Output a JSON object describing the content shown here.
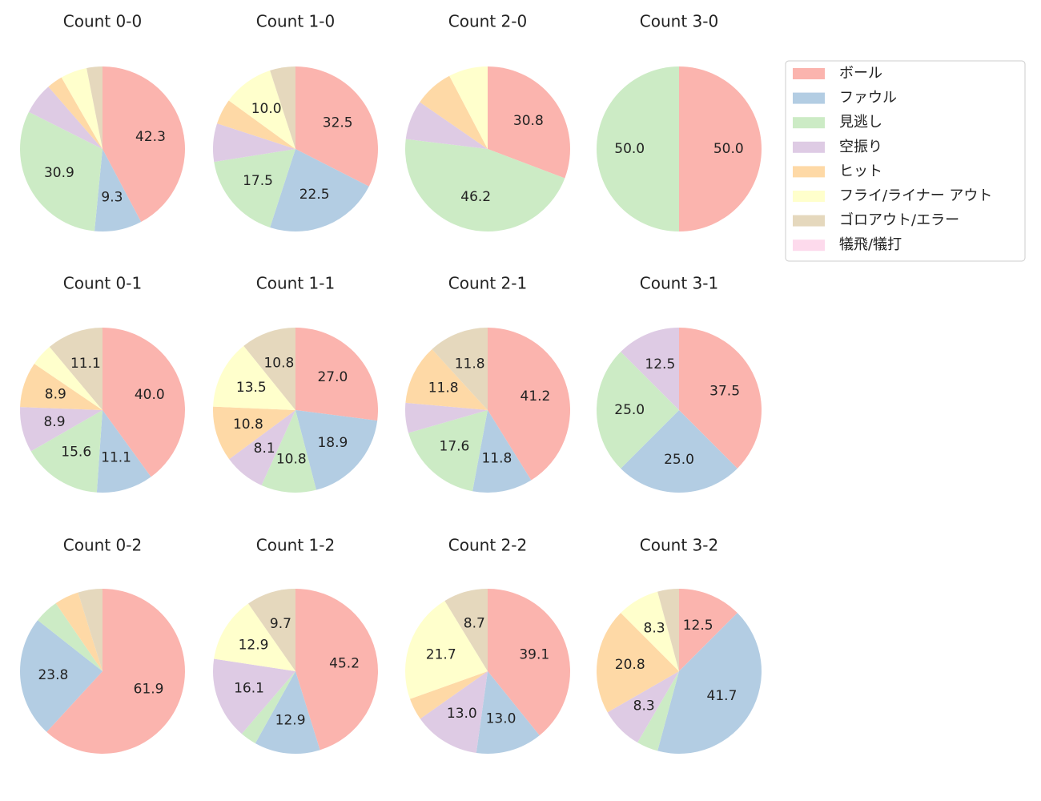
{
  "legend": {
    "entries": [
      "ボール",
      "ファウル",
      "見逃し",
      "空振り",
      "ヒット",
      "フライ/ライナー アウト",
      "ゴロアウト/エラー",
      "犠飛/犠打"
    ],
    "colors": [
      "#fbb4ae",
      "#b3cde3",
      "#ccebc5",
      "#decbe4",
      "#fed9a6",
      "#ffffcc",
      "#e5d8bd",
      "#fddaec"
    ],
    "position": "upper right"
  },
  "chart_data": [
    {
      "type": "pie",
      "title": "Count 0-0",
      "values": [
        42.3,
        9.3,
        30.9,
        6.2,
        3.1,
        5.2,
        3.1,
        0
      ],
      "value_labels": [
        "42.3",
        "9.3",
        "30.9",
        null,
        null,
        null,
        null,
        null
      ]
    },
    {
      "type": "pie",
      "title": "Count 1-0",
      "values": [
        32.5,
        22.5,
        17.5,
        7.5,
        5.0,
        10.0,
        5.0,
        0
      ],
      "value_labels": [
        "32.5",
        "22.5",
        "17.5",
        null,
        null,
        "10.0",
        null,
        null
      ]
    },
    {
      "type": "pie",
      "title": "Count 2-0",
      "values": [
        30.8,
        0,
        46.2,
        7.7,
        7.7,
        7.7,
        0,
        0
      ],
      "value_labels": [
        "30.8",
        null,
        "46.2",
        null,
        null,
        null,
        null,
        null
      ]
    },
    {
      "type": "pie",
      "title": "Count 3-0",
      "values": [
        50.0,
        0,
        50.0,
        0,
        0,
        0,
        0,
        0
      ],
      "value_labels": [
        "50.0",
        null,
        "50.0",
        null,
        null,
        null,
        null,
        null
      ]
    },
    {
      "type": "pie",
      "title": "Count 0-1",
      "values": [
        40.0,
        11.1,
        15.6,
        8.9,
        8.9,
        4.4,
        11.1,
        0
      ],
      "value_labels": [
        "40.0",
        "11.1",
        "15.6",
        "8.9",
        "8.9",
        null,
        "11.1",
        null
      ]
    },
    {
      "type": "pie",
      "title": "Count 1-1",
      "values": [
        27.0,
        18.9,
        10.8,
        8.1,
        10.8,
        13.5,
        10.8,
        0
      ],
      "value_labels": [
        "27.0",
        "18.9",
        "10.8",
        "8.1",
        "10.8",
        "13.5",
        "10.8",
        null
      ]
    },
    {
      "type": "pie",
      "title": "Count 2-1",
      "values": [
        41.2,
        11.8,
        17.6,
        5.9,
        11.8,
        0,
        11.8,
        0
      ],
      "value_labels": [
        "41.2",
        "11.8",
        "17.6",
        null,
        "11.8",
        null,
        "11.8",
        null
      ]
    },
    {
      "type": "pie",
      "title": "Count 3-1",
      "values": [
        37.5,
        25.0,
        25.0,
        12.5,
        0,
        0,
        0,
        0
      ],
      "value_labels": [
        "37.5",
        "25.0",
        "25.0",
        "12.5",
        null,
        null,
        null,
        null
      ]
    },
    {
      "type": "pie",
      "title": "Count 0-2",
      "values": [
        61.9,
        23.8,
        4.8,
        0,
        4.8,
        0,
        4.8,
        0
      ],
      "value_labels": [
        "61.9",
        "23.8",
        null,
        null,
        null,
        null,
        null,
        null
      ]
    },
    {
      "type": "pie",
      "title": "Count 1-2",
      "values": [
        45.2,
        12.9,
        3.2,
        16.1,
        0,
        12.9,
        9.7,
        0
      ],
      "value_labels": [
        "45.2",
        "12.9",
        null,
        "16.1",
        null,
        "12.9",
        "9.7",
        null
      ]
    },
    {
      "type": "pie",
      "title": "Count 2-2",
      "values": [
        39.1,
        13.0,
        0,
        13.0,
        4.3,
        21.7,
        8.7,
        0
      ],
      "value_labels": [
        "39.1",
        "13.0",
        null,
        "13.0",
        null,
        "21.7",
        "8.7",
        null
      ]
    },
    {
      "type": "pie",
      "title": "Count 3-2",
      "values": [
        12.5,
        41.7,
        4.2,
        8.3,
        20.8,
        8.3,
        4.2,
        0
      ],
      "value_labels": [
        "12.5",
        "41.7",
        null,
        "8.3",
        "20.8",
        "8.3",
        null,
        null
      ]
    }
  ]
}
